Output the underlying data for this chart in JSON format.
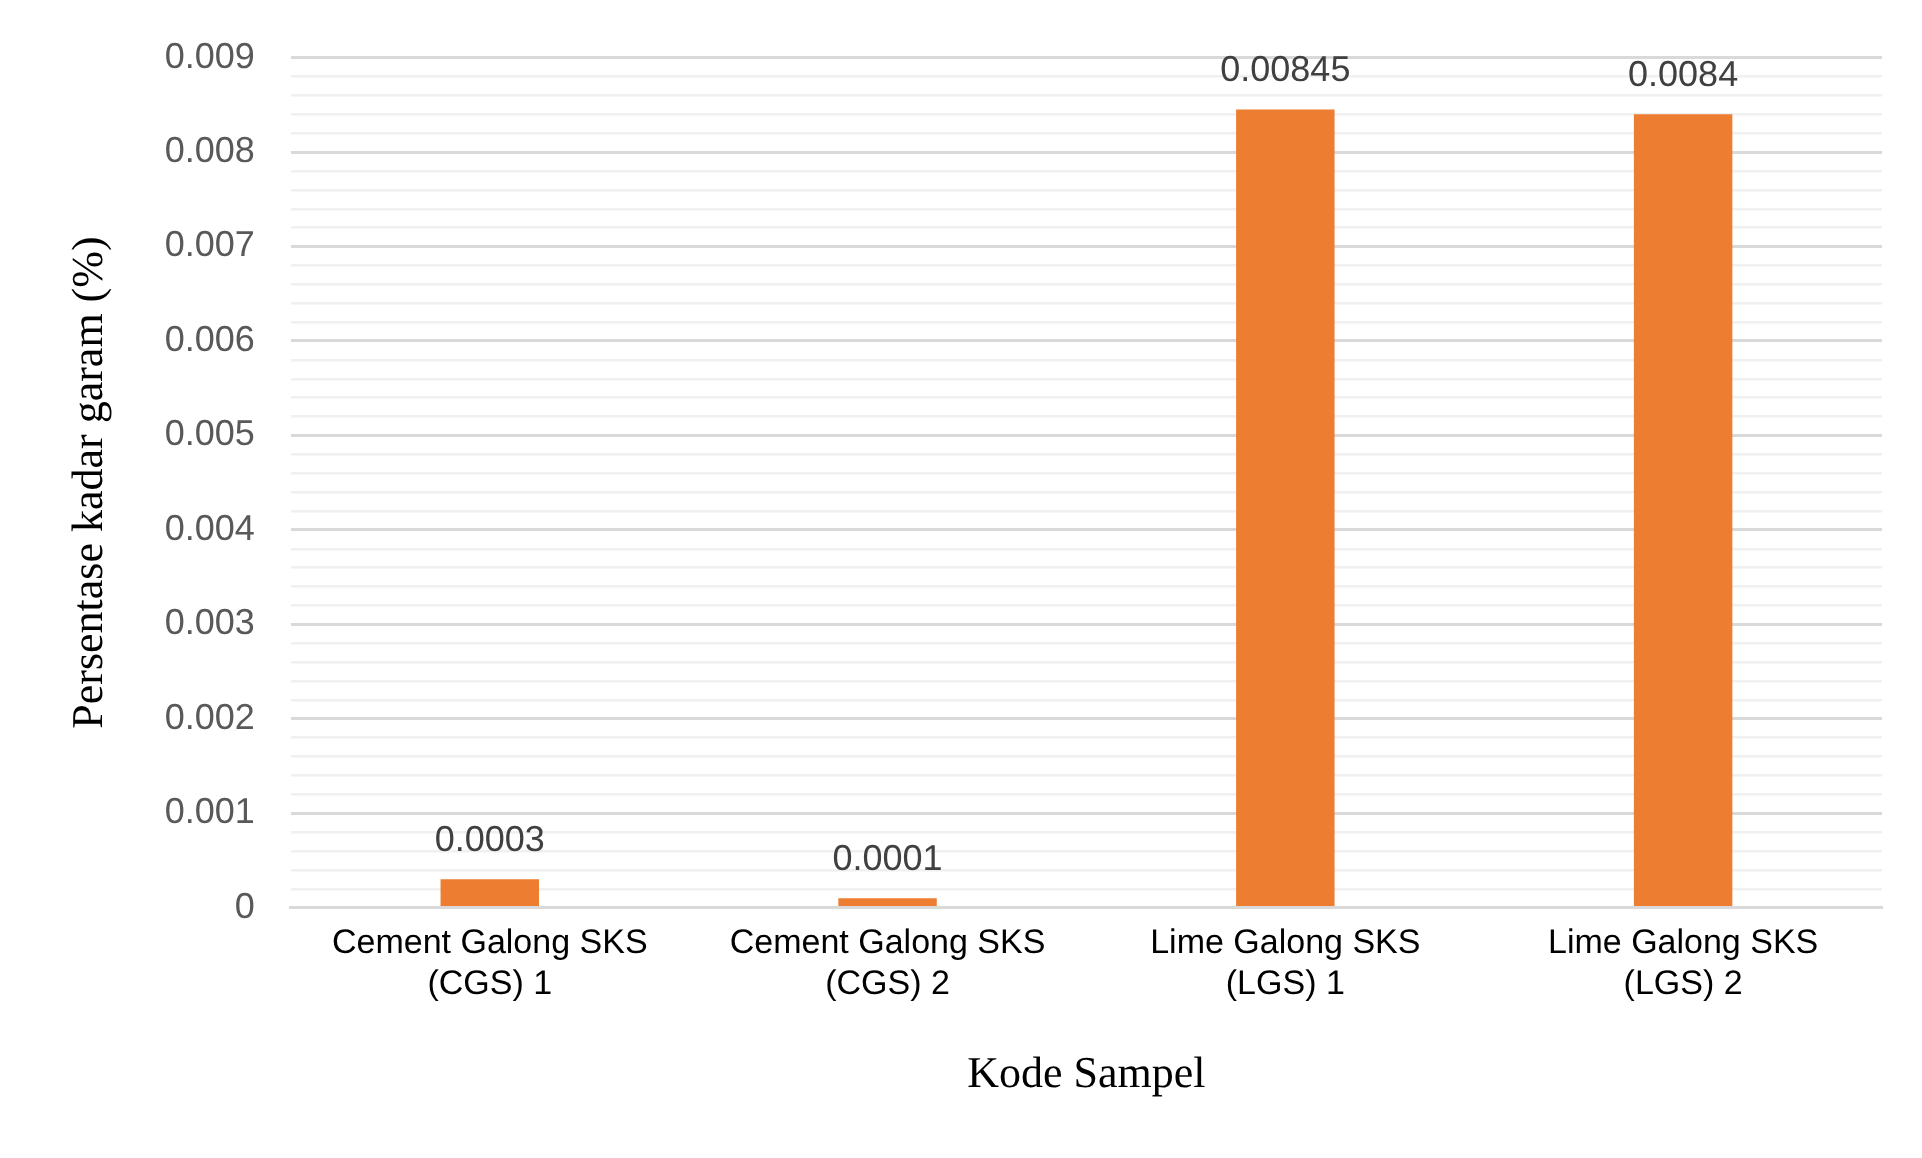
{
  "chart_data": {
    "type": "bar",
    "xlabel": "Kode Sampel",
    "ylabel": "Persentase kadar garam (%)",
    "categories": [
      "Cement Galong SKS (CGS) 1",
      "Cement Galong SKS (CGS) 2",
      "Lime Galong SKS (LGS) 1",
      "Lime Galong SKS (LGS) 2"
    ],
    "values": [
      0.0003,
      0.0001,
      0.00845,
      0.0084
    ],
    "color": "#ed7d31",
    "value_labels": [
      "0.0003",
      "0.0001",
      "0.00845",
      "0.0084"
    ],
    "ylim": [
      0,
      0.009
    ],
    "yticks": [
      0,
      {
        "value": 0.0002,
        "label": null
      },
      {
        "value": 0.0004,
        "label": null
      },
      {
        "value": 0.0006,
        "label": null
      },
      {
        "value": 0.0008,
        "label": null
      },
      0.001,
      {
        "value": 0.0012,
        "label": null
      },
      {
        "value": 0.0014,
        "label": null
      },
      {
        "value": 0.0016,
        "label": null
      },
      {
        "value": 0.0018,
        "label": null
      },
      0.002,
      {
        "value": 0.0022,
        "label": null
      },
      {
        "value": 0.0024,
        "label": null
      },
      {
        "value": 0.0026,
        "label": null
      },
      {
        "value": 0.0028,
        "label": null
      },
      0.003,
      {
        "value": 0.0032,
        "label": null
      },
      {
        "value": 0.0034,
        "label": null
      },
      {
        "value": 0.0036,
        "label": null
      },
      {
        "value": 0.0038,
        "label": null
      },
      0.004,
      {
        "value": 0.0042,
        "label": null
      },
      {
        "value": 0.0044,
        "label": null
      },
      {
        "value": 0.0046,
        "label": null
      },
      {
        "value": 0.0048,
        "label": null
      },
      0.005,
      {
        "value": 0.0052,
        "label": null
      },
      {
        "value": 0.0054,
        "label": null
      },
      {
        "value": 0.0056,
        "label": null
      },
      {
        "value": 0.0058,
        "label": null
      },
      0.006,
      {
        "value": 0.0062,
        "label": null
      },
      {
        "value": 0.0064,
        "label": null
      },
      {
        "value": 0.0066,
        "label": null
      },
      {
        "value": 0.0068,
        "label": null
      },
      0.007,
      {
        "value": 0.0072,
        "label": null
      },
      {
        "value": 0.0074,
        "label": null
      },
      {
        "value": 0.0076,
        "label": null
      },
      {
        "value": 0.0078,
        "label": null
      },
      0.008,
      {
        "value": 0.0082,
        "label": null
      },
      {
        "value": 0.0084,
        "label": null
      },
      {
        "value": 0.0086,
        "label": null
      },
      {
        "value": 0.0088,
        "label": null
      },
      0.009
    ],
    "grid": true,
    "legend": false
  }
}
